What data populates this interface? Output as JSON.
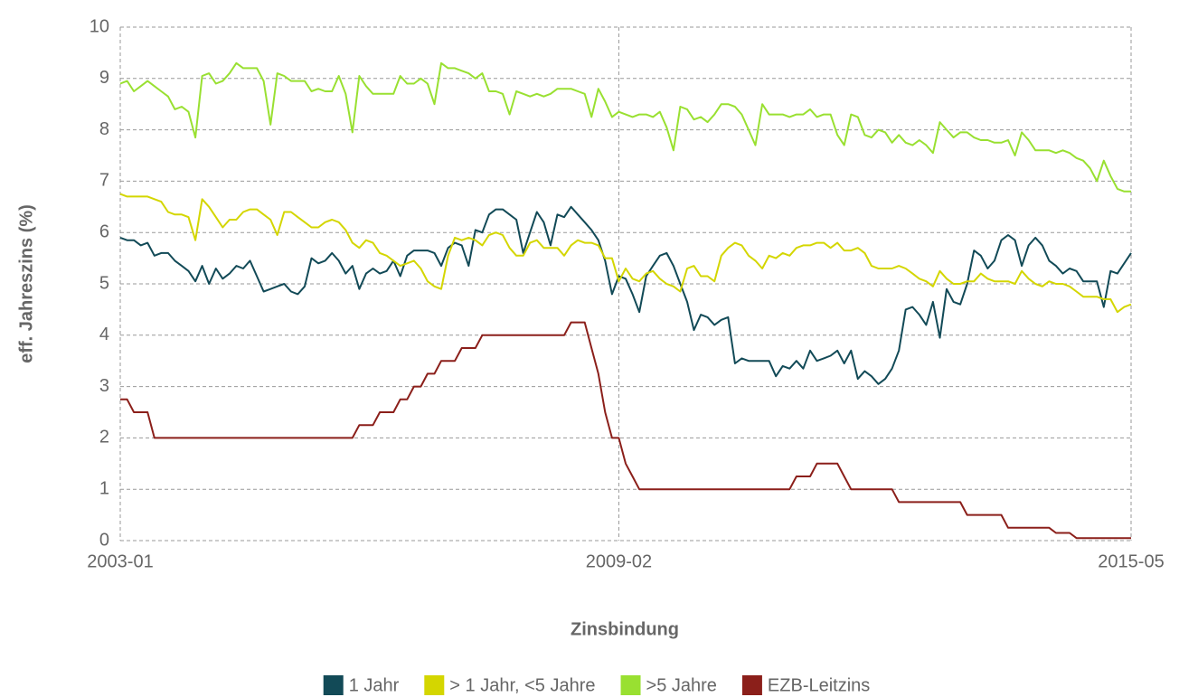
{
  "chart_data": {
    "type": "line",
    "y_label": "eff. Jahreszins (%)",
    "x_label": "Zinsbindung",
    "categories": [
      "2003-01",
      null,
      null,
      null,
      null,
      null,
      null,
      null,
      null,
      null,
      null,
      null,
      null,
      null,
      null,
      null,
      null,
      null,
      null,
      null,
      null,
      null,
      null,
      null,
      null,
      null,
      null,
      null,
      null,
      null,
      null,
      null,
      null,
      null,
      null,
      null,
      null,
      null,
      null,
      null,
      null,
      null,
      null,
      null,
      null,
      null,
      null,
      null,
      null,
      null,
      null,
      null,
      null,
      null,
      null,
      null,
      null,
      null,
      null,
      null,
      null,
      null,
      null,
      null,
      null,
      null,
      null,
      null,
      null,
      null,
      null,
      null,
      null,
      "2009-02",
      null,
      null,
      null,
      null,
      null,
      null,
      null,
      null,
      null,
      null,
      null,
      null,
      null,
      null,
      null,
      null,
      null,
      null,
      null,
      null,
      null,
      null,
      null,
      null,
      null,
      null,
      null,
      null,
      null,
      null,
      null,
      null,
      null,
      null,
      null,
      null,
      null,
      null,
      null,
      null,
      null,
      null,
      null,
      null,
      null,
      null,
      null,
      null,
      null,
      null,
      null,
      null,
      null,
      null,
      null,
      null,
      null,
      null,
      null,
      null,
      null,
      null,
      null,
      null,
      null,
      null,
      null,
      null,
      null,
      null,
      null,
      null,
      null,
      null,
      "2015-05"
    ],
    "series": [
      {
        "name": "1 Jahr",
        "color": "#124a57",
        "values": [
          5.9,
          5.85,
          5.85,
          5.75,
          5.8,
          5.55,
          5.6,
          5.6,
          5.45,
          5.35,
          5.25,
          5.05,
          5.35,
          5.0,
          5.3,
          5.1,
          5.2,
          5.35,
          5.3,
          5.45,
          5.15,
          4.85,
          4.9,
          4.95,
          5.0,
          4.85,
          4.8,
          4.95,
          5.5,
          5.4,
          5.45,
          5.6,
          5.45,
          5.2,
          5.35,
          4.9,
          5.2,
          5.3,
          5.2,
          5.25,
          5.45,
          5.15,
          5.55,
          5.65,
          5.65,
          5.65,
          5.6,
          5.35,
          5.7,
          5.8,
          5.75,
          5.35,
          6.05,
          6.0,
          6.35,
          6.45,
          6.45,
          6.35,
          6.25,
          5.6,
          6.0,
          6.4,
          6.2,
          5.75,
          6.35,
          6.3,
          6.5,
          6.35,
          6.2,
          6.05,
          5.85,
          5.45,
          4.8,
          5.15,
          5.1,
          4.8,
          4.45,
          5.15,
          5.35,
          5.55,
          5.6,
          5.35,
          5.0,
          4.65,
          4.1,
          4.4,
          4.35,
          4.2,
          4.3,
          4.35,
          3.45,
          3.55,
          3.5,
          3.5,
          3.5,
          3.5,
          3.2,
          3.4,
          3.35,
          3.5,
          3.35,
          3.7,
          3.5,
          3.55,
          3.6,
          3.7,
          3.45,
          3.7,
          3.15,
          3.3,
          3.2,
          3.05,
          3.15,
          3.35,
          3.7,
          4.5,
          4.55,
          4.4,
          4.2,
          4.65,
          3.95,
          4.9,
          4.65,
          4.6,
          5.0,
          5.65,
          5.55,
          5.3,
          5.45,
          5.85,
          5.95,
          5.85,
          5.35,
          5.75,
          5.9,
          5.75,
          5.45,
          5.35,
          5.2,
          5.3,
          5.25,
          5.05,
          5.05,
          5.05,
          4.55,
          5.25,
          5.2,
          5.4,
          5.6
        ]
      },
      {
        "name": "> 1 Jahr, <5 Jahre",
        "color": "#d4d600",
        "values": [
          6.75,
          6.7,
          6.7,
          6.7,
          6.7,
          6.65,
          6.6,
          6.4,
          6.35,
          6.35,
          6.3,
          5.85,
          6.65,
          6.5,
          6.3,
          6.1,
          6.25,
          6.25,
          6.4,
          6.45,
          6.45,
          6.35,
          6.25,
          5.95,
          6.4,
          6.4,
          6.3,
          6.2,
          6.1,
          6.1,
          6.2,
          6.25,
          6.2,
          6.05,
          5.8,
          5.7,
          5.85,
          5.8,
          5.6,
          5.55,
          5.45,
          5.35,
          5.4,
          5.45,
          5.3,
          5.05,
          4.95,
          4.9,
          5.55,
          5.9,
          5.85,
          5.9,
          5.85,
          5.75,
          5.95,
          6.0,
          5.95,
          5.7,
          5.55,
          5.55,
          5.8,
          5.85,
          5.7,
          5.7,
          5.7,
          5.55,
          5.75,
          5.85,
          5.8,
          5.8,
          5.75,
          5.5,
          5.5,
          5.05,
          5.3,
          5.1,
          5.05,
          5.2,
          5.25,
          5.1,
          5.0,
          4.95,
          4.85,
          5.3,
          5.35,
          5.15,
          5.15,
          5.05,
          5.55,
          5.7,
          5.8,
          5.75,
          5.55,
          5.45,
          5.3,
          5.55,
          5.5,
          5.6,
          5.55,
          5.7,
          5.75,
          5.75,
          5.8,
          5.8,
          5.7,
          5.8,
          5.65,
          5.65,
          5.7,
          5.6,
          5.35,
          5.3,
          5.3,
          5.3,
          5.35,
          5.3,
          5.2,
          5.1,
          5.05,
          4.95,
          5.25,
          5.1,
          5.0,
          5.0,
          5.05,
          5.05,
          5.2,
          5.1,
          5.05,
          5.05,
          5.05,
          5.0,
          5.25,
          5.1,
          5.0,
          4.95,
          5.05,
          5.0,
          5.0,
          4.95,
          4.85,
          4.75,
          4.75,
          4.75,
          4.7,
          4.7,
          4.45,
          4.55,
          4.6
        ]
      },
      {
        "name": ">5 Jahre",
        "color": "#99e031",
        "values": [
          8.9,
          8.95,
          8.75,
          8.85,
          8.95,
          8.85,
          8.75,
          8.65,
          8.4,
          8.45,
          8.35,
          7.85,
          9.05,
          9.1,
          8.9,
          8.95,
          9.1,
          9.3,
          9.2,
          9.2,
          9.2,
          8.95,
          8.1,
          9.1,
          9.05,
          8.95,
          8.95,
          8.95,
          8.75,
          8.8,
          8.75,
          8.75,
          9.05,
          8.7,
          7.95,
          9.05,
          8.85,
          8.7,
          8.7,
          8.7,
          8.7,
          9.05,
          8.9,
          8.9,
          9.0,
          8.9,
          8.5,
          9.3,
          9.2,
          9.2,
          9.15,
          9.1,
          9.0,
          9.1,
          8.75,
          8.75,
          8.7,
          8.3,
          8.75,
          8.7,
          8.65,
          8.7,
          8.65,
          8.7,
          8.8,
          8.8,
          8.8,
          8.75,
          8.7,
          8.25,
          8.8,
          8.55,
          8.25,
          8.35,
          8.3,
          8.25,
          8.3,
          8.3,
          8.25,
          8.35,
          8.05,
          7.6,
          8.45,
          8.4,
          8.2,
          8.25,
          8.15,
          8.3,
          8.5,
          8.5,
          8.45,
          8.3,
          8.0,
          7.7,
          8.5,
          8.3,
          8.3,
          8.3,
          8.25,
          8.3,
          8.3,
          8.4,
          8.25,
          8.3,
          8.3,
          7.9,
          7.7,
          8.3,
          8.25,
          7.9,
          7.85,
          8.0,
          7.95,
          7.75,
          7.9,
          7.75,
          7.7,
          7.8,
          7.7,
          7.55,
          8.15,
          8.0,
          7.85,
          7.95,
          7.95,
          7.85,
          7.8,
          7.8,
          7.75,
          7.75,
          7.8,
          7.5,
          7.95,
          7.8,
          7.6,
          7.6,
          7.6,
          7.55,
          7.6,
          7.55,
          7.45,
          7.4,
          7.25,
          7.0,
          7.4,
          7.1,
          6.85,
          6.8,
          6.8
        ]
      },
      {
        "name": "EZB-Leitzins",
        "color": "#8b1f1a",
        "values": [
          2.75,
          2.75,
          2.5,
          2.5,
          2.5,
          2,
          2,
          2,
          2,
          2,
          2,
          2,
          2,
          2,
          2,
          2,
          2,
          2,
          2,
          2,
          2,
          2,
          2,
          2,
          2,
          2,
          2,
          2,
          2,
          2,
          2,
          2,
          2,
          2,
          2,
          2.25,
          2.25,
          2.25,
          2.5,
          2.5,
          2.5,
          2.75,
          2.75,
          3,
          3,
          3.25,
          3.25,
          3.5,
          3.5,
          3.5,
          3.75,
          3.75,
          3.75,
          4,
          4,
          4,
          4,
          4,
          4,
          4,
          4,
          4,
          4,
          4,
          4,
          4,
          4.25,
          4.25,
          4.25,
          3.75,
          3.25,
          2.5,
          2,
          2,
          1.5,
          1.25,
          1,
          1,
          1,
          1,
          1,
          1,
          1,
          1,
          1,
          1,
          1,
          1,
          1,
          1,
          1,
          1,
          1,
          1,
          1,
          1,
          1,
          1,
          1,
          1.25,
          1.25,
          1.25,
          1.5,
          1.5,
          1.5,
          1.5,
          1.25,
          1,
          1,
          1,
          1,
          1,
          1,
          1,
          0.75,
          0.75,
          0.75,
          0.75,
          0.75,
          0.75,
          0.75,
          0.75,
          0.75,
          0.75,
          0.5,
          0.5,
          0.5,
          0.5,
          0.5,
          0.5,
          0.25,
          0.25,
          0.25,
          0.25,
          0.25,
          0.25,
          0.25,
          0.15,
          0.15,
          0.15,
          0.05,
          0.05,
          0.05,
          0.05,
          0.05,
          0.05,
          0.05,
          0.05,
          0.05
        ]
      }
    ],
    "ylim": [
      0,
      10
    ],
    "yticks": [
      0,
      1,
      2,
      3,
      4,
      5,
      6,
      7,
      8,
      9,
      10
    ],
    "grid": true
  }
}
